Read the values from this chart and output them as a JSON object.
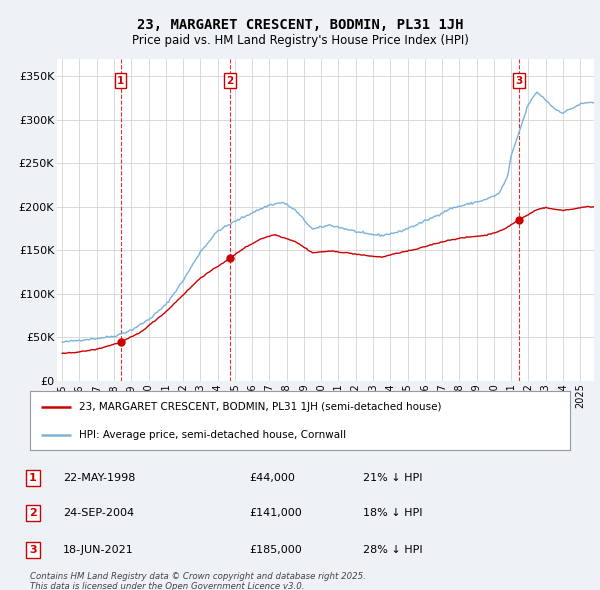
{
  "title": "23, MARGARET CRESCENT, BODMIN, PL31 1JH",
  "subtitle": "Price paid vs. HM Land Registry's House Price Index (HPI)",
  "ylabel_ticks": [
    "£0",
    "£50K",
    "£100K",
    "£150K",
    "£200K",
    "£250K",
    "£300K",
    "£350K"
  ],
  "ytick_vals": [
    0,
    50000,
    100000,
    150000,
    200000,
    250000,
    300000,
    350000
  ],
  "ylim": [
    0,
    370000
  ],
  "xlim_start": 1994.7,
  "xlim_end": 2025.8,
  "sale_color": "#cc0000",
  "hpi_color": "#7bb3d9",
  "transactions": [
    {
      "num": 1,
      "date_x": 1998.38,
      "price": 44000,
      "label": "22-MAY-1998",
      "amount": "£44,000",
      "pct": "21% ↓ HPI"
    },
    {
      "num": 2,
      "date_x": 2004.73,
      "price": 141000,
      "label": "24-SEP-2004",
      "amount": "£141,000",
      "pct": "18% ↓ HPI"
    },
    {
      "num": 3,
      "date_x": 2021.46,
      "price": 185000,
      "label": "18-JUN-2021",
      "amount": "£185,000",
      "pct": "28% ↓ HPI"
    }
  ],
  "legend_sale_label": "23, MARGARET CRESCENT, BODMIN, PL31 1JH (semi-detached house)",
  "legend_hpi_label": "HPI: Average price, semi-detached house, Cornwall",
  "footer_line1": "Contains HM Land Registry data © Crown copyright and database right 2025.",
  "footer_line2": "This data is licensed under the Open Government Licence v3.0.",
  "background_color": "#eef2f7",
  "plot_bg_color": "#ffffff",
  "grid_color": "#cccccc",
  "legend_border_color": "#999999"
}
